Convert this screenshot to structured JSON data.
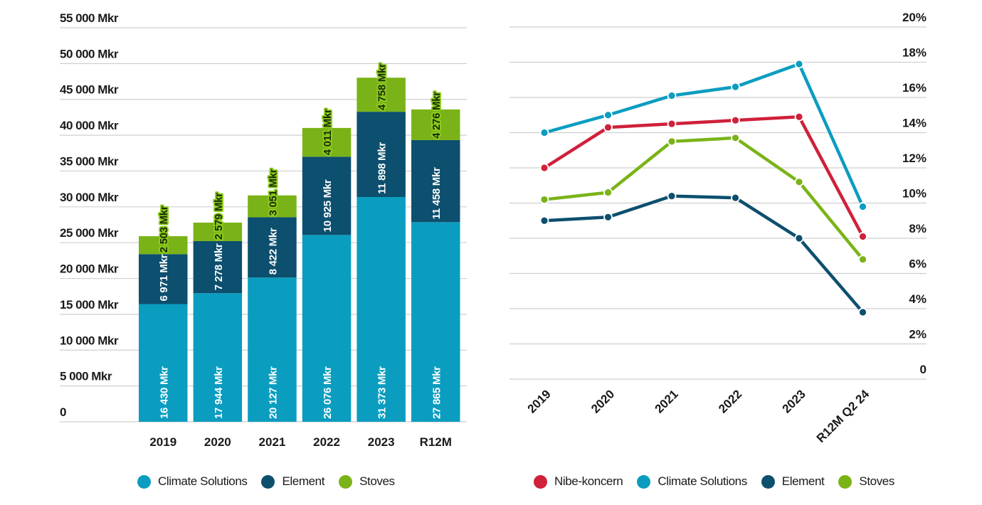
{
  "chart_data": [
    {
      "type": "bar",
      "stacked": true,
      "title": "",
      "xlabel": "",
      "ylabel": "",
      "ylim": [
        0,
        55000
      ],
      "yticks": [
        0,
        5000,
        10000,
        15000,
        20000,
        25000,
        30000,
        35000,
        40000,
        45000,
        50000,
        55000
      ],
      "ytick_labels": [
        "0",
        "5 000 Mkr",
        "10 000 Mkr",
        "15 000 Mkr",
        "20 000 Mkr",
        "25 000 Mkr",
        "30 000 Mkr",
        "35 000 Mkr",
        "40 000 Mkr",
        "45 000 Mkr",
        "50 000 Mkr",
        "55 000 Mkr"
      ],
      "grid": true,
      "categories": [
        "2019",
        "2020",
        "2021",
        "2022",
        "2023",
        "R12M"
      ],
      "series": [
        {
          "name": "Climate Solutions",
          "color": "#0a9dc0",
          "values": [
            16430,
            17944,
            20127,
            26076,
            31373,
            27865
          ],
          "labels": [
            "16 430 Mkr",
            "17 944 Mkr",
            "20 127 Mkr",
            "26 076 Mkr",
            "31 373 Mkr",
            "27 865 Mkr"
          ]
        },
        {
          "name": "Element",
          "color": "#0d4f6e",
          "values": [
            6971,
            7278,
            8422,
            10925,
            11898,
            11458
          ],
          "labels": [
            "6 971 Mkr",
            "7 278 Mkr",
            "8 422 Mkr",
            "10 925 Mkr",
            "11 898 Mkr",
            "11 458 Mkr"
          ]
        },
        {
          "name": "Stoves",
          "color": "#7ab317",
          "values": [
            2503,
            2579,
            3051,
            4011,
            4758,
            4276
          ],
          "labels": [
            "2 503 Mkr",
            "2 579 Mkr",
            "3 051 Mkr",
            "4 011 Mkr",
            "4 758 Mkr",
            "4 276 Mkr"
          ]
        }
      ],
      "legend": {
        "position": "bottom",
        "entries": [
          "Climate Solutions",
          "Element",
          "Stoves"
        ]
      }
    },
    {
      "type": "line",
      "title": "",
      "xlabel": "",
      "ylabel": "",
      "ylim": [
        0,
        20
      ],
      "y_axis_side": "right",
      "yticks": [
        0,
        2,
        4,
        6,
        8,
        10,
        12,
        14,
        16,
        18,
        20
      ],
      "ytick_labels": [
        "0",
        "2%",
        "4%",
        "6%",
        "8%",
        "10%",
        "12%",
        "14%",
        "16%",
        "18%",
        "20%"
      ],
      "grid": true,
      "categories": [
        "2019",
        "2020",
        "2021",
        "2022",
        "2023",
        "R12M Q2 24"
      ],
      "series": [
        {
          "name": "Nibe-koncern",
          "color": "#d0203a",
          "values": [
            12.0,
            14.3,
            14.5,
            14.7,
            14.9,
            8.1
          ]
        },
        {
          "name": "Climate Solutions",
          "color": "#0a9dc0",
          "values": [
            14.0,
            15.0,
            16.1,
            16.6,
            17.9,
            9.8
          ]
        },
        {
          "name": "Element",
          "color": "#0d4f6e",
          "values": [
            9.0,
            9.2,
            10.4,
            10.3,
            8.0,
            3.8
          ]
        },
        {
          "name": "Stoves",
          "color": "#7ab317",
          "values": [
            10.2,
            10.6,
            13.5,
            13.7,
            11.2,
            6.8
          ]
        }
      ],
      "legend": {
        "position": "bottom",
        "entries": [
          "Nibe-koncern",
          "Climate Solutions",
          "Element",
          "Stoves"
        ]
      }
    }
  ]
}
